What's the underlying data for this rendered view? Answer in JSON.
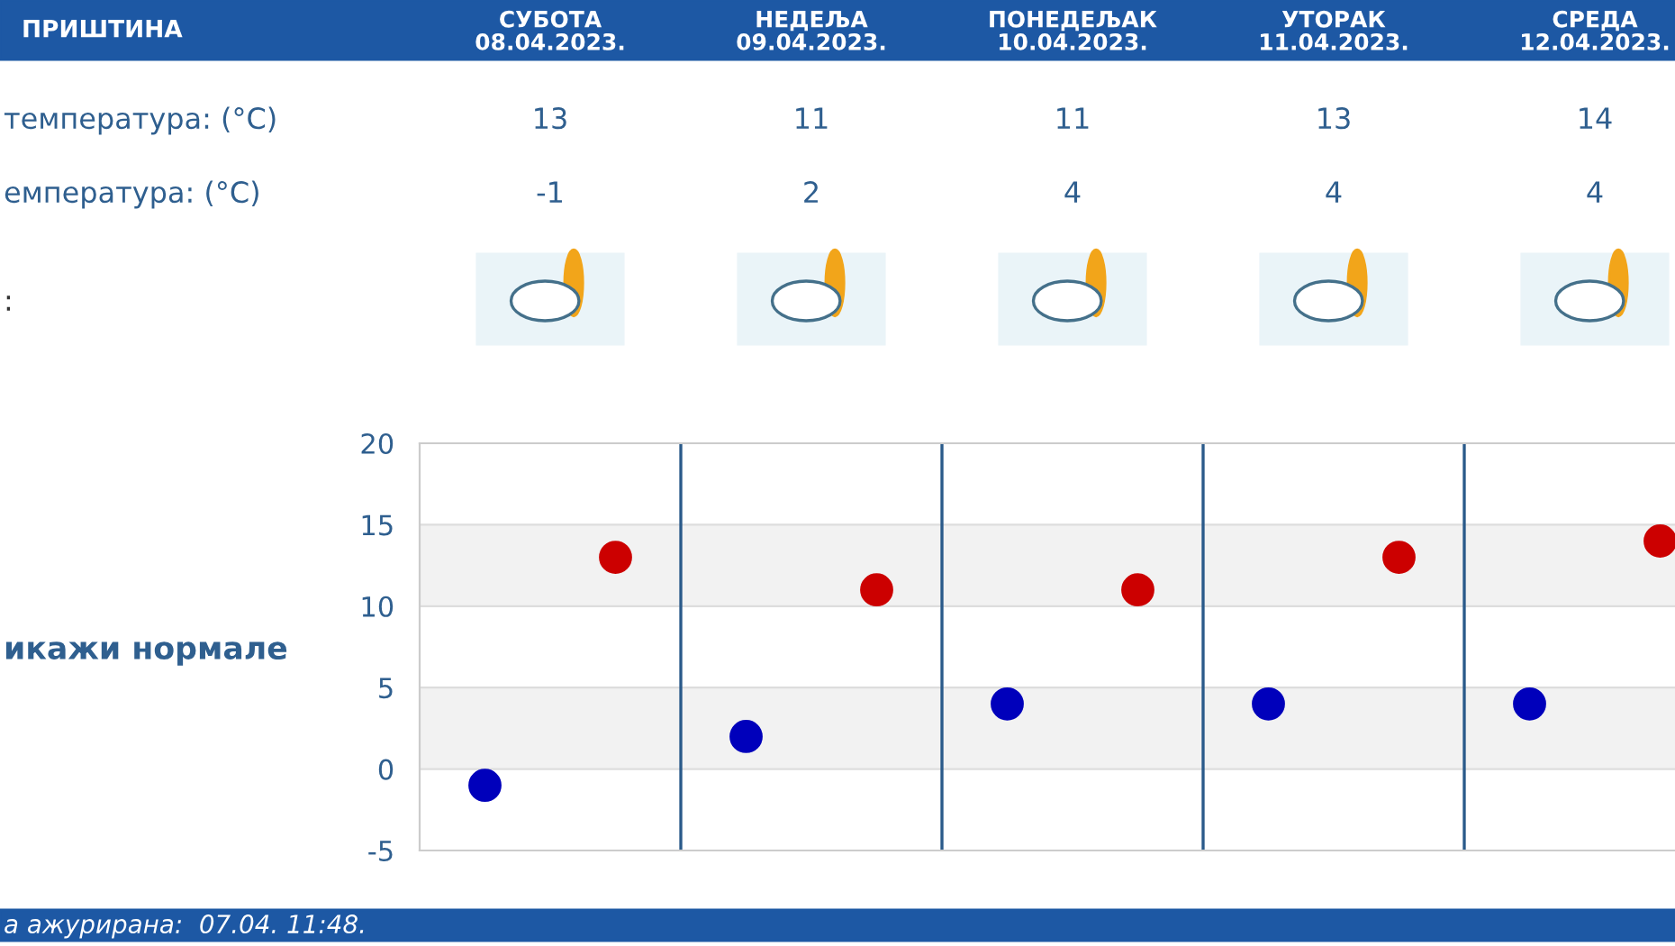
{
  "chart_data": {
    "type": "scatter",
    "title": "ПРИШТИНА",
    "categories": [
      null,
      null,
      null,
      null,
      null
    ],
    "series": [
      {
        "color": "#cc0000",
        "values": [
          13,
          11,
          11,
          13,
          14
        ]
      },
      {
        "color": "#0000bb",
        "values": [
          -1,
          2,
          4,
          4,
          4
        ]
      }
    ],
    "ylim": [
      -5,
      20
    ],
    "yticks": [
      -5,
      0,
      5,
      10,
      15,
      20
    ],
    "bands": [
      {
        "axis": "y",
        "from": 0,
        "to": 5,
        "color": "#f2f2f2"
      },
      {
        "axis": "y",
        "from": 10,
        "to": 15,
        "color": "#f2f2f2"
      }
    ],
    "grid": "y",
    "legend": false,
    "marker": "circle",
    "data_labels": true,
    "annotations": [
      "температура: (°C)",
      "емпература: (°C)",
      ":",
      "икажи нормале",
      "а ажурирана:  07.04. 11:48.",
      "СУБОТА\n08.04.2023.",
      "НЕДЕЉА\n09.04.2023.",
      "ПОНЕДЕЉАК\n10.04.2023.",
      "УТОРАК\n11.04.2023.",
      "СРЕДА\n12.04.2023."
    ]
  }
}
